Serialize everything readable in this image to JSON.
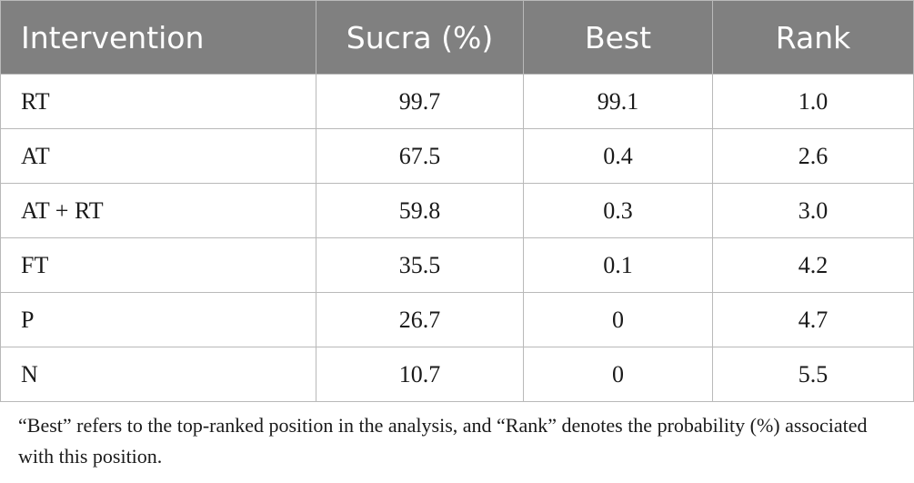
{
  "table": {
    "headers": [
      "Intervention",
      "Sucra (%)",
      "Best",
      "Rank"
    ],
    "rows": [
      [
        "RT",
        "99.7",
        "99.1",
        "1.0"
      ],
      [
        "AT",
        "67.5",
        "0.4",
        "2.6"
      ],
      [
        "AT + RT",
        "59.8",
        "0.3",
        "3.0"
      ],
      [
        "FT",
        "35.5",
        "0.1",
        "4.2"
      ],
      [
        "P",
        "26.7",
        "0",
        "4.7"
      ],
      [
        "N",
        "10.7",
        "0",
        "5.5"
      ]
    ]
  },
  "footnote": "“Best” refers to the top-ranked position in the analysis, and “Rank” denotes the probability (%) associated with this position.",
  "colors": {
    "header_bg": "#808080",
    "header_text": "#ffffff",
    "border": "#b9b9b9"
  }
}
